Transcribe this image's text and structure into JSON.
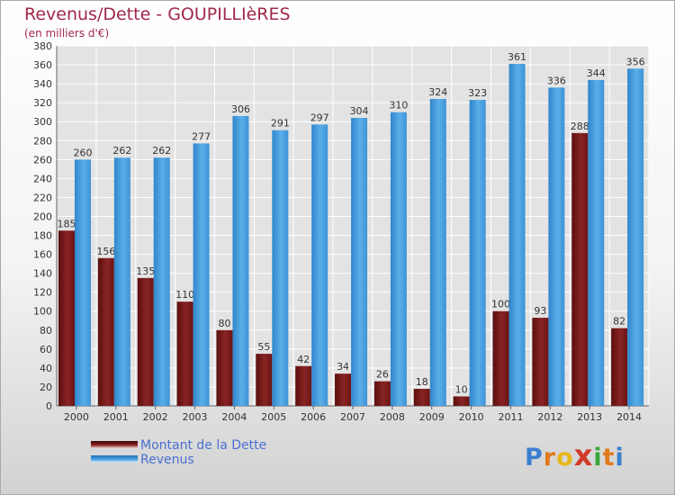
{
  "header": {
    "title": "Revenus/Dette - GOUPILLIèRES",
    "subtitle": "(en milliers d'€)"
  },
  "chart_data": {
    "type": "bar",
    "categories": [
      "2000",
      "2001",
      "2002",
      "2003",
      "2004",
      "2005",
      "2006",
      "2007",
      "2008",
      "2009",
      "2010",
      "2011",
      "2012",
      "2013",
      "2014"
    ],
    "series": [
      {
        "name": "Montant de la Dette",
        "color": "#7a1818",
        "values": [
          185,
          156,
          135,
          110,
          80,
          55,
          42,
          34,
          26,
          18,
          10,
          100,
          93,
          288,
          82
        ]
      },
      {
        "name": "Revenus",
        "color": "#4a9fe0",
        "values": [
          260,
          262,
          262,
          277,
          306,
          291,
          297,
          304,
          310,
          324,
          323,
          361,
          336,
          344,
          356
        ]
      }
    ],
    "ylim": [
      0,
      380
    ],
    "y_ticks": [
      0,
      20,
      40,
      60,
      80,
      100,
      120,
      140,
      160,
      180,
      200,
      220,
      240,
      260,
      280,
      300,
      320,
      340,
      360,
      380
    ],
    "grid": true,
    "legend_position": "bottom-left"
  },
  "legend": {
    "items": [
      "Montant de la Dette",
      "Revenus"
    ]
  },
  "logo": {
    "letters": [
      "P",
      "r",
      "o",
      "x",
      "i",
      "t",
      "i"
    ],
    "colors": [
      "#3b7fd0",
      "#e07a1a",
      "#e8b818",
      "#d23a2a",
      "#3aa63a",
      "#e07a1a",
      "#3b7fd0"
    ]
  }
}
